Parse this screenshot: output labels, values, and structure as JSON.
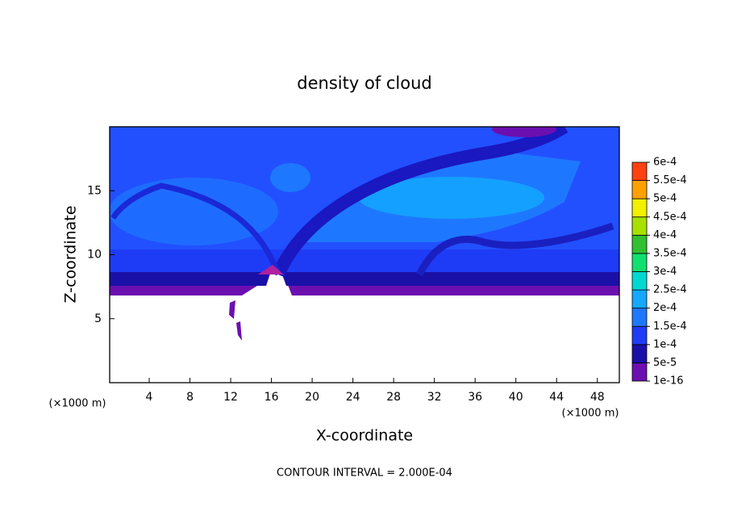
{
  "chart_data": {
    "type": "contour",
    "title": "density of cloud",
    "x_label": "X-coordinate",
    "y_label": "Z-coordinate",
    "x_unit": "(×1000 m)",
    "footer": "CONTOUR INTERVAL = 2.000E-04",
    "xlim": [
      0,
      50
    ],
    "xticks": [
      4,
      8,
      12,
      16,
      20,
      24,
      28,
      32,
      36,
      40,
      44,
      48
    ],
    "ylim": [
      0,
      20
    ],
    "yticks": [
      5,
      10,
      15
    ],
    "colorbar": {
      "levels": [
        {
          "value": 1e-16,
          "label": "1e-16"
        },
        {
          "value": 5e-05,
          "label": "5e-5"
        },
        {
          "value": 0.0001,
          "label": "1e-4"
        },
        {
          "value": 0.00015,
          "label": "1.5e-4"
        },
        {
          "value": 0.0002,
          "label": "2e-4"
        },
        {
          "value": 0.00025,
          "label": "2.5e-4"
        },
        {
          "value": 0.0003,
          "label": "3e-4"
        },
        {
          "value": 0.00035,
          "label": "3.5e-4"
        },
        {
          "value": 0.0004,
          "label": "4e-4"
        },
        {
          "value": 0.00045,
          "label": "4.5e-4"
        },
        {
          "value": 0.0005,
          "label": "5e-4"
        },
        {
          "value": 0.00055,
          "label": "5.5e-4"
        },
        {
          "value": 0.0006,
          "label": "6e-4"
        }
      ],
      "colors": [
        "#6c0fb0",
        "#1a10a8",
        "#1e3cf5",
        "#1e78ff",
        "#14a8ff",
        "#00d8d0",
        "#10e070",
        "#30c030",
        "#a8e000",
        "#f0f000",
        "#ffa000",
        "#ff4010"
      ]
    }
  }
}
